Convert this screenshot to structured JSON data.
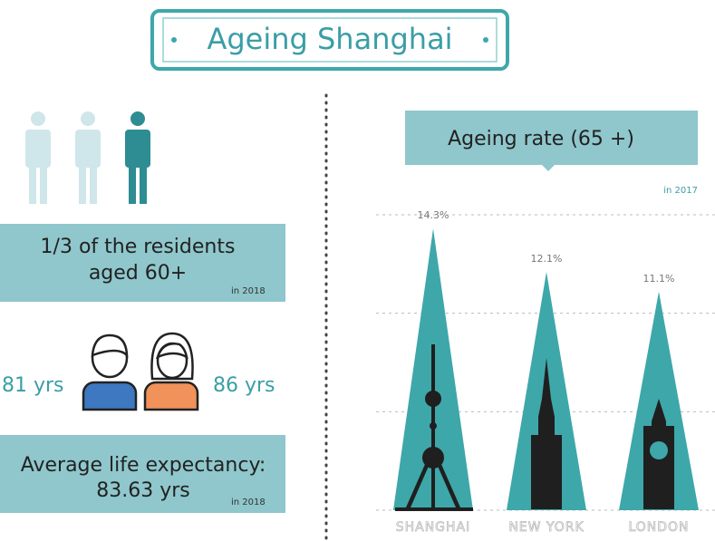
{
  "header": {
    "title": "Ageing Shanghai"
  },
  "residents": {
    "lines": [
      "1/3 of the residents",
      "aged 60+"
    ],
    "year": "in 2018"
  },
  "life": {
    "male": "81 yrs",
    "female": "86 yrs",
    "lines": [
      "Average life expectancy:",
      "83.63 yrs"
    ],
    "year": "in 2018"
  },
  "chart_data": {
    "type": "bar",
    "title": "Ageing rate (65 +)",
    "subtitle": "in 2017",
    "categories": [
      "SHANGHAI",
      "NEW YORK",
      "LONDON"
    ],
    "values": [
      14.3,
      12.1,
      11.1
    ],
    "value_labels": [
      "14.3%",
      "12.1%",
      "11.1%"
    ],
    "color": "#3ea7aa",
    "ylim": [
      0,
      15
    ],
    "yticks": [
      0,
      5,
      10,
      15
    ],
    "grid": true
  }
}
